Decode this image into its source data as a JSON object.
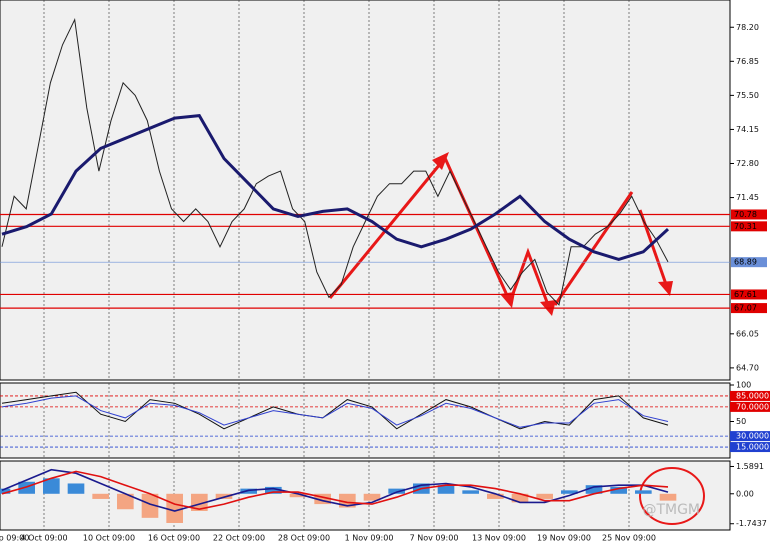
{
  "chart_data": [
    {
      "type": "line",
      "series": [
        {
          "name": "Price",
          "color": "#222222",
          "values": [
            69.5,
            71.5,
            71.0,
            73.5,
            76.0,
            77.5,
            78.5,
            75.0,
            72.5,
            74.5,
            76.0,
            75.5,
            74.5,
            72.5,
            71.0,
            70.5,
            71.0,
            70.5,
            69.5,
            70.5,
            71.0,
            72.0,
            72.3,
            72.5,
            71.0,
            70.5,
            68.5,
            67.5,
            68.0,
            69.5,
            70.5,
            71.5,
            72.0,
            72.0,
            72.5,
            72.5,
            71.5,
            72.5,
            71.5,
            70.5,
            69.5,
            68.5,
            67.8,
            68.5,
            69.0,
            67.7,
            67.2,
            69.5,
            69.5,
            70.0,
            70.3,
            70.8,
            71.5,
            70.5,
            69.8,
            68.9
          ]
        },
        {
          "name": "MA",
          "color": "#1a1a6e",
          "values": [
            70.0,
            70.3,
            70.8,
            72.5,
            73.4,
            73.8,
            74.2,
            74.6,
            74.7,
            73.0,
            72.0,
            71.0,
            70.7,
            70.9,
            71.0,
            70.5,
            69.8,
            69.5,
            69.8,
            70.2,
            70.8,
            71.5,
            70.5,
            69.8,
            69.3,
            69.0,
            69.3,
            70.2
          ]
        }
      ],
      "ylim": [
        64.22,
        79.28
      ],
      "yticks": [
        {
          "value": 78.2,
          "label": "78.20"
        },
        {
          "value": 76.85,
          "label": "76.85"
        },
        {
          "value": 75.5,
          "label": "75.50"
        },
        {
          "value": 74.15,
          "label": "74.15"
        },
        {
          "value": 72.8,
          "label": "72.80"
        },
        {
          "value": 71.45,
          "label": "71.45"
        },
        {
          "value": 66.05,
          "label": "66.05"
        },
        {
          "value": 64.7,
          "label": "64.70"
        }
      ],
      "levels": [
        70.78,
        70.31,
        68.89,
        67.61,
        67.07
      ],
      "level_colors": [
        "#e00000",
        "#e00000",
        "#6a8fd8",
        "#e00000",
        "#e00000"
      ]
    },
    {
      "type": "line",
      "series": [
        {
          "name": "Fast",
          "color": "#111111",
          "values": [
            75,
            80,
            85,
            90,
            60,
            50,
            80,
            75,
            60,
            40,
            55,
            70,
            60,
            55,
            80,
            70,
            40,
            60,
            80,
            70,
            55,
            40,
            50,
            45,
            80,
            85,
            55,
            45
          ]
        },
        {
          "name": "Slow",
          "color": "#3040d0",
          "values": [
            70,
            75,
            82,
            85,
            65,
            55,
            75,
            72,
            62,
            45,
            55,
            65,
            60,
            55,
            75,
            68,
            45,
            58,
            75,
            68,
            55,
            42,
            48,
            48,
            75,
            80,
            58,
            50
          ]
        }
      ],
      "ylim": [
        0,
        100
      ],
      "yticks": [
        100,
        {
          "value": 85,
          "label": "85.0000"
        },
        {
          "value": 70,
          "label": "70.0000"
        },
        50,
        {
          "value": 30,
          "label": "30.0000"
        },
        {
          "value": 15,
          "label": "15.0000"
        }
      ],
      "tick_colors": [
        "#ffffff",
        "#e00000",
        "#e00000",
        "#ffffff",
        "#2040d0",
        "#2040d0"
      ]
    },
    {
      "type": "bar",
      "values": [
        0.3,
        0.7,
        0.9,
        0.6,
        -0.3,
        -0.9,
        -1.4,
        -1.7,
        -1.0,
        -0.3,
        0.3,
        0.4,
        -0.2,
        -0.6,
        -0.8,
        -0.4,
        0.3,
        0.6,
        0.5,
        0.2,
        -0.3,
        -0.5,
        -0.3,
        0.2,
        0.5,
        0.4,
        0.2,
        -0.4
      ],
      "colors": [
        "#3a8ad8",
        "#f4a582"
      ],
      "series": [
        {
          "name": "MACD",
          "color": "#1a1a8e",
          "values": [
            0.2,
            0.8,
            1.4,
            1.2,
            0.6,
            0.0,
            -0.6,
            -1.0,
            -0.6,
            -0.2,
            0.2,
            0.3,
            0.0,
            -0.4,
            -0.7,
            -0.5,
            0.1,
            0.5,
            0.6,
            0.4,
            0.0,
            -0.5,
            -0.5,
            -0.1,
            0.4,
            0.5,
            0.5,
            0.1
          ]
        },
        {
          "name": "Signal",
          "color": "#e01010",
          "values": [
            0.0,
            0.4,
            0.9,
            1.3,
            1.0,
            0.5,
            0.0,
            -0.6,
            -0.9,
            -0.6,
            -0.2,
            0.1,
            0.1,
            -0.2,
            -0.5,
            -0.6,
            -0.2,
            0.3,
            0.5,
            0.5,
            0.3,
            0.0,
            -0.4,
            -0.4,
            0.0,
            0.3,
            0.5,
            0.4
          ]
        }
      ],
      "ylim": [
        -2.05,
        1.85
      ],
      "yticks": [
        1.5891,
        {
          "value": 0,
          "label": "0.00"
        },
        -1.7437
      ]
    }
  ],
  "time_labels": [
    "p 09:00",
    "4 Oct 09:00",
    "10 Oct 09:00",
    "16 Oct 09:00",
    "22 Oct 09:00",
    "28 Oct 09:00",
    "1 Nov 09:00",
    "7 Nov 09:00",
    "13 Nov 09:00",
    "19 Nov 09:00",
    "25 Nov 09:00"
  ],
  "watermark": "@TMGM"
}
